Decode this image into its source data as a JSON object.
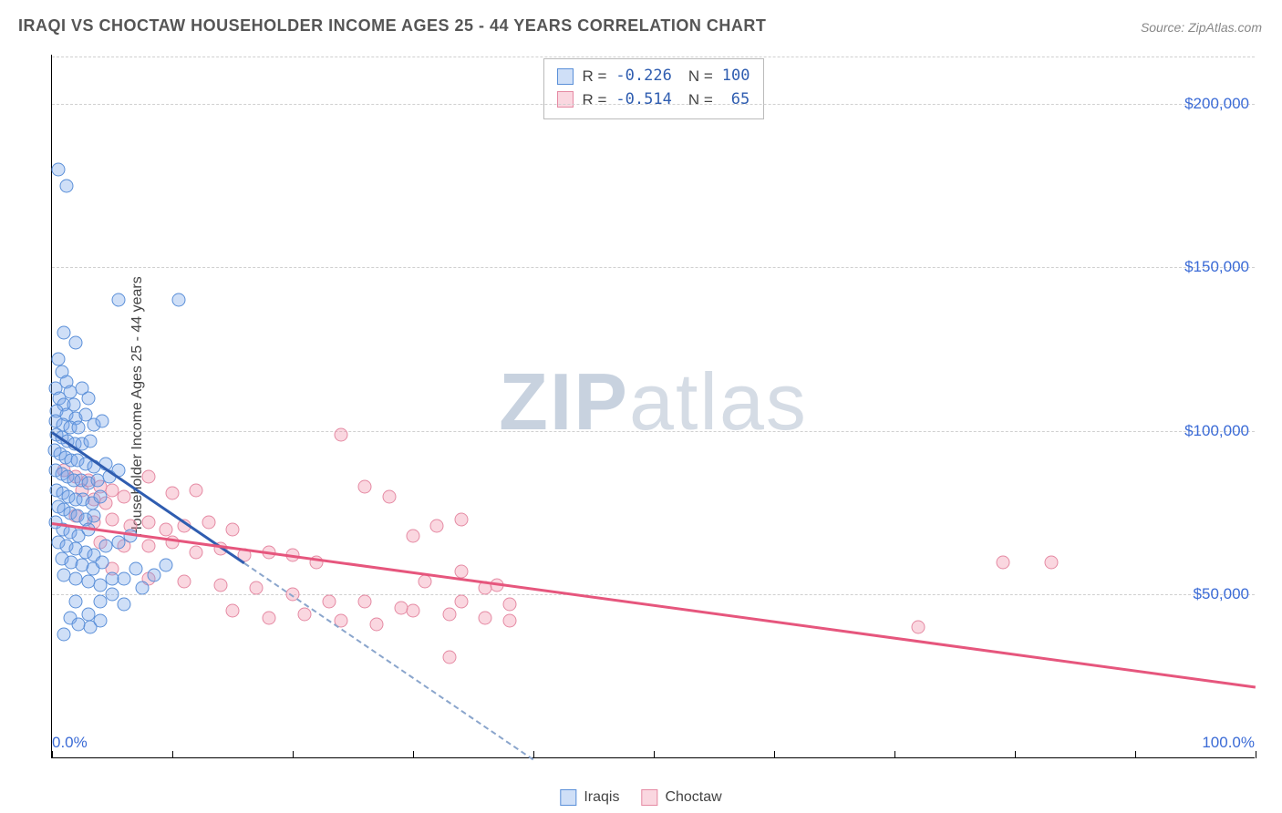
{
  "chart": {
    "type": "scatter",
    "title": "IRAQI VS CHOCTAW HOUSEHOLDER INCOME AGES 25 - 44 YEARS CORRELATION CHART",
    "source": "Source: ZipAtlas.com",
    "watermark": {
      "prefix": "ZIP",
      "suffix": "atlas"
    },
    "y_axis": {
      "title": "Householder Income Ages 25 - 44 years",
      "min": 0,
      "max": 215000,
      "ticks": [
        {
          "value": 50000,
          "label": "$50,000"
        },
        {
          "value": 100000,
          "label": "$100,000"
        },
        {
          "value": 150000,
          "label": "$150,000"
        },
        {
          "value": 200000,
          "label": "$200,000"
        }
      ],
      "tick_color": "#3b6bd6",
      "grid_color": "#d0d0d0"
    },
    "x_axis": {
      "min": 0,
      "max": 100,
      "ticks_at": [
        0,
        10,
        20,
        30,
        40,
        50,
        60,
        70,
        80,
        90,
        100
      ],
      "labels": [
        {
          "value": 0,
          "label": "0.0%",
          "align": "left"
        },
        {
          "value": 100,
          "label": "100.0%",
          "align": "right"
        }
      ],
      "tick_color": "#3b6bd6"
    },
    "legend_stats": [
      {
        "series": "a",
        "R": "-0.226",
        "N": "100"
      },
      {
        "series": "b",
        "R": "-0.514",
        "N": "65"
      }
    ],
    "bottom_legend": [
      {
        "series": "a",
        "label": "Iraqis"
      },
      {
        "series": "b",
        "label": "Choctaw"
      }
    ],
    "series_style": {
      "a": {
        "fill": "rgba(118,163,231,0.35)",
        "stroke": "#5a8fd8",
        "line": "#2f5db0",
        "dash": "#8aa5cc"
      },
      "b": {
        "fill": "rgba(240,140,165,0.35)",
        "stroke": "#e58aa3",
        "line": "#e6567d"
      }
    },
    "trend_lines": {
      "a": {
        "x1": 0,
        "y1": 100000,
        "x2_solid": 16,
        "y2_solid": 60000,
        "x2_dash": 40,
        "y2_dash": 0
      },
      "b": {
        "x1": 0,
        "y1": 72000,
        "x2": 100,
        "y2": 22000
      }
    },
    "points": {
      "a": [
        [
          0.5,
          180000
        ],
        [
          1.2,
          175000
        ],
        [
          1.0,
          130000
        ],
        [
          2.0,
          127000
        ],
        [
          5.5,
          140000
        ],
        [
          10.5,
          140000
        ],
        [
          0.5,
          122000
        ],
        [
          0.8,
          118000
        ],
        [
          1.2,
          115000
        ],
        [
          0.3,
          113000
        ],
        [
          1.5,
          112000
        ],
        [
          2.5,
          113000
        ],
        [
          0.6,
          110000
        ],
        [
          1.0,
          108000
        ],
        [
          1.8,
          108000
        ],
        [
          3.0,
          110000
        ],
        [
          0.4,
          106000
        ],
        [
          1.2,
          105000
        ],
        [
          2.0,
          104000
        ],
        [
          2.8,
          105000
        ],
        [
          0.3,
          103000
        ],
        [
          0.9,
          102000
        ],
        [
          1.5,
          101000
        ],
        [
          2.2,
          101000
        ],
        [
          3.5,
          102000
        ],
        [
          4.2,
          103000
        ],
        [
          0.4,
          99000
        ],
        [
          0.8,
          98000
        ],
        [
          1.3,
          97000
        ],
        [
          1.9,
          96000
        ],
        [
          2.5,
          96000
        ],
        [
          3.2,
          97000
        ],
        [
          0.2,
          94000
        ],
        [
          0.7,
          93000
        ],
        [
          1.1,
          92000
        ],
        [
          1.6,
          91000
        ],
        [
          2.1,
          91000
        ],
        [
          2.8,
          90000
        ],
        [
          3.5,
          89000
        ],
        [
          4.5,
          90000
        ],
        [
          0.3,
          88000
        ],
        [
          0.8,
          87000
        ],
        [
          1.3,
          86000
        ],
        [
          1.8,
          85000
        ],
        [
          2.4,
          85000
        ],
        [
          3.0,
          84000
        ],
        [
          3.8,
          85000
        ],
        [
          4.8,
          86000
        ],
        [
          5.5,
          88000
        ],
        [
          0.4,
          82000
        ],
        [
          0.9,
          81000
        ],
        [
          1.4,
          80000
        ],
        [
          2.0,
          79000
        ],
        [
          2.6,
          79000
        ],
        [
          3.3,
          78000
        ],
        [
          4.0,
          80000
        ],
        [
          0.5,
          77000
        ],
        [
          1.0,
          76000
        ],
        [
          1.5,
          75000
        ],
        [
          2.1,
          74000
        ],
        [
          2.8,
          73000
        ],
        [
          3.5,
          74000
        ],
        [
          0.3,
          72000
        ],
        [
          0.9,
          70000
        ],
        [
          1.5,
          69000
        ],
        [
          2.2,
          68000
        ],
        [
          3.0,
          70000
        ],
        [
          0.5,
          66000
        ],
        [
          1.2,
          65000
        ],
        [
          2.0,
          64000
        ],
        [
          2.8,
          63000
        ],
        [
          3.5,
          62000
        ],
        [
          4.5,
          65000
        ],
        [
          5.5,
          66000
        ],
        [
          6.5,
          68000
        ],
        [
          0.8,
          61000
        ],
        [
          1.6,
          60000
        ],
        [
          2.5,
          59000
        ],
        [
          3.4,
          58000
        ],
        [
          4.2,
          60000
        ],
        [
          1.0,
          56000
        ],
        [
          2.0,
          55000
        ],
        [
          3.0,
          54000
        ],
        [
          4.0,
          53000
        ],
        [
          5.0,
          55000
        ],
        [
          6.0,
          55000
        ],
        [
          7.0,
          58000
        ],
        [
          8.5,
          56000
        ],
        [
          9.5,
          59000
        ],
        [
          2.0,
          48000
        ],
        [
          3.0,
          44000
        ],
        [
          1.5,
          43000
        ],
        [
          4.0,
          48000
        ],
        [
          5.0,
          50000
        ],
        [
          6.0,
          47000
        ],
        [
          7.5,
          52000
        ],
        [
          2.2,
          41000
        ],
        [
          3.2,
          40000
        ],
        [
          1.0,
          38000
        ],
        [
          4.0,
          42000
        ]
      ],
      "b": [
        [
          1.0,
          88000
        ],
        [
          2.0,
          86000
        ],
        [
          3.0,
          85000
        ],
        [
          2.5,
          82000
        ],
        [
          4.0,
          83000
        ],
        [
          5.0,
          82000
        ],
        [
          3.5,
          79000
        ],
        [
          4.5,
          78000
        ],
        [
          6.0,
          80000
        ],
        [
          8.0,
          86000
        ],
        [
          10.0,
          81000
        ],
        [
          12.0,
          82000
        ],
        [
          2.0,
          74000
        ],
        [
          3.5,
          72000
        ],
        [
          5.0,
          73000
        ],
        [
          6.5,
          71000
        ],
        [
          8.0,
          72000
        ],
        [
          9.5,
          70000
        ],
        [
          11.0,
          71000
        ],
        [
          13.0,
          72000
        ],
        [
          15.0,
          70000
        ],
        [
          4.0,
          66000
        ],
        [
          6.0,
          65000
        ],
        [
          8.0,
          65000
        ],
        [
          10.0,
          66000
        ],
        [
          12.0,
          63000
        ],
        [
          14.0,
          64000
        ],
        [
          16.0,
          62000
        ],
        [
          18.0,
          63000
        ],
        [
          20.0,
          62000
        ],
        [
          22.0,
          60000
        ],
        [
          24.0,
          99000
        ],
        [
          26.0,
          83000
        ],
        [
          28.0,
          80000
        ],
        [
          30.0,
          68000
        ],
        [
          32.0,
          71000
        ],
        [
          5.0,
          58000
        ],
        [
          8.0,
          55000
        ],
        [
          11.0,
          54000
        ],
        [
          14.0,
          53000
        ],
        [
          17.0,
          52000
        ],
        [
          20.0,
          50000
        ],
        [
          23.0,
          48000
        ],
        [
          26.0,
          48000
        ],
        [
          29.0,
          46000
        ],
        [
          15.0,
          45000
        ],
        [
          18.0,
          43000
        ],
        [
          21.0,
          44000
        ],
        [
          24.0,
          42000
        ],
        [
          27.0,
          41000
        ],
        [
          30.0,
          45000
        ],
        [
          33.0,
          44000
        ],
        [
          36.0,
          43000
        ],
        [
          34.0,
          48000
        ],
        [
          36.0,
          52000
        ],
        [
          38.0,
          42000
        ],
        [
          33.0,
          31000
        ],
        [
          38.0,
          47000
        ],
        [
          31.0,
          54000
        ],
        [
          34.0,
          57000
        ],
        [
          37.0,
          53000
        ],
        [
          72.0,
          40000
        ],
        [
          79.0,
          60000
        ],
        [
          83.0,
          60000
        ],
        [
          34.0,
          73000
        ]
      ]
    }
  }
}
